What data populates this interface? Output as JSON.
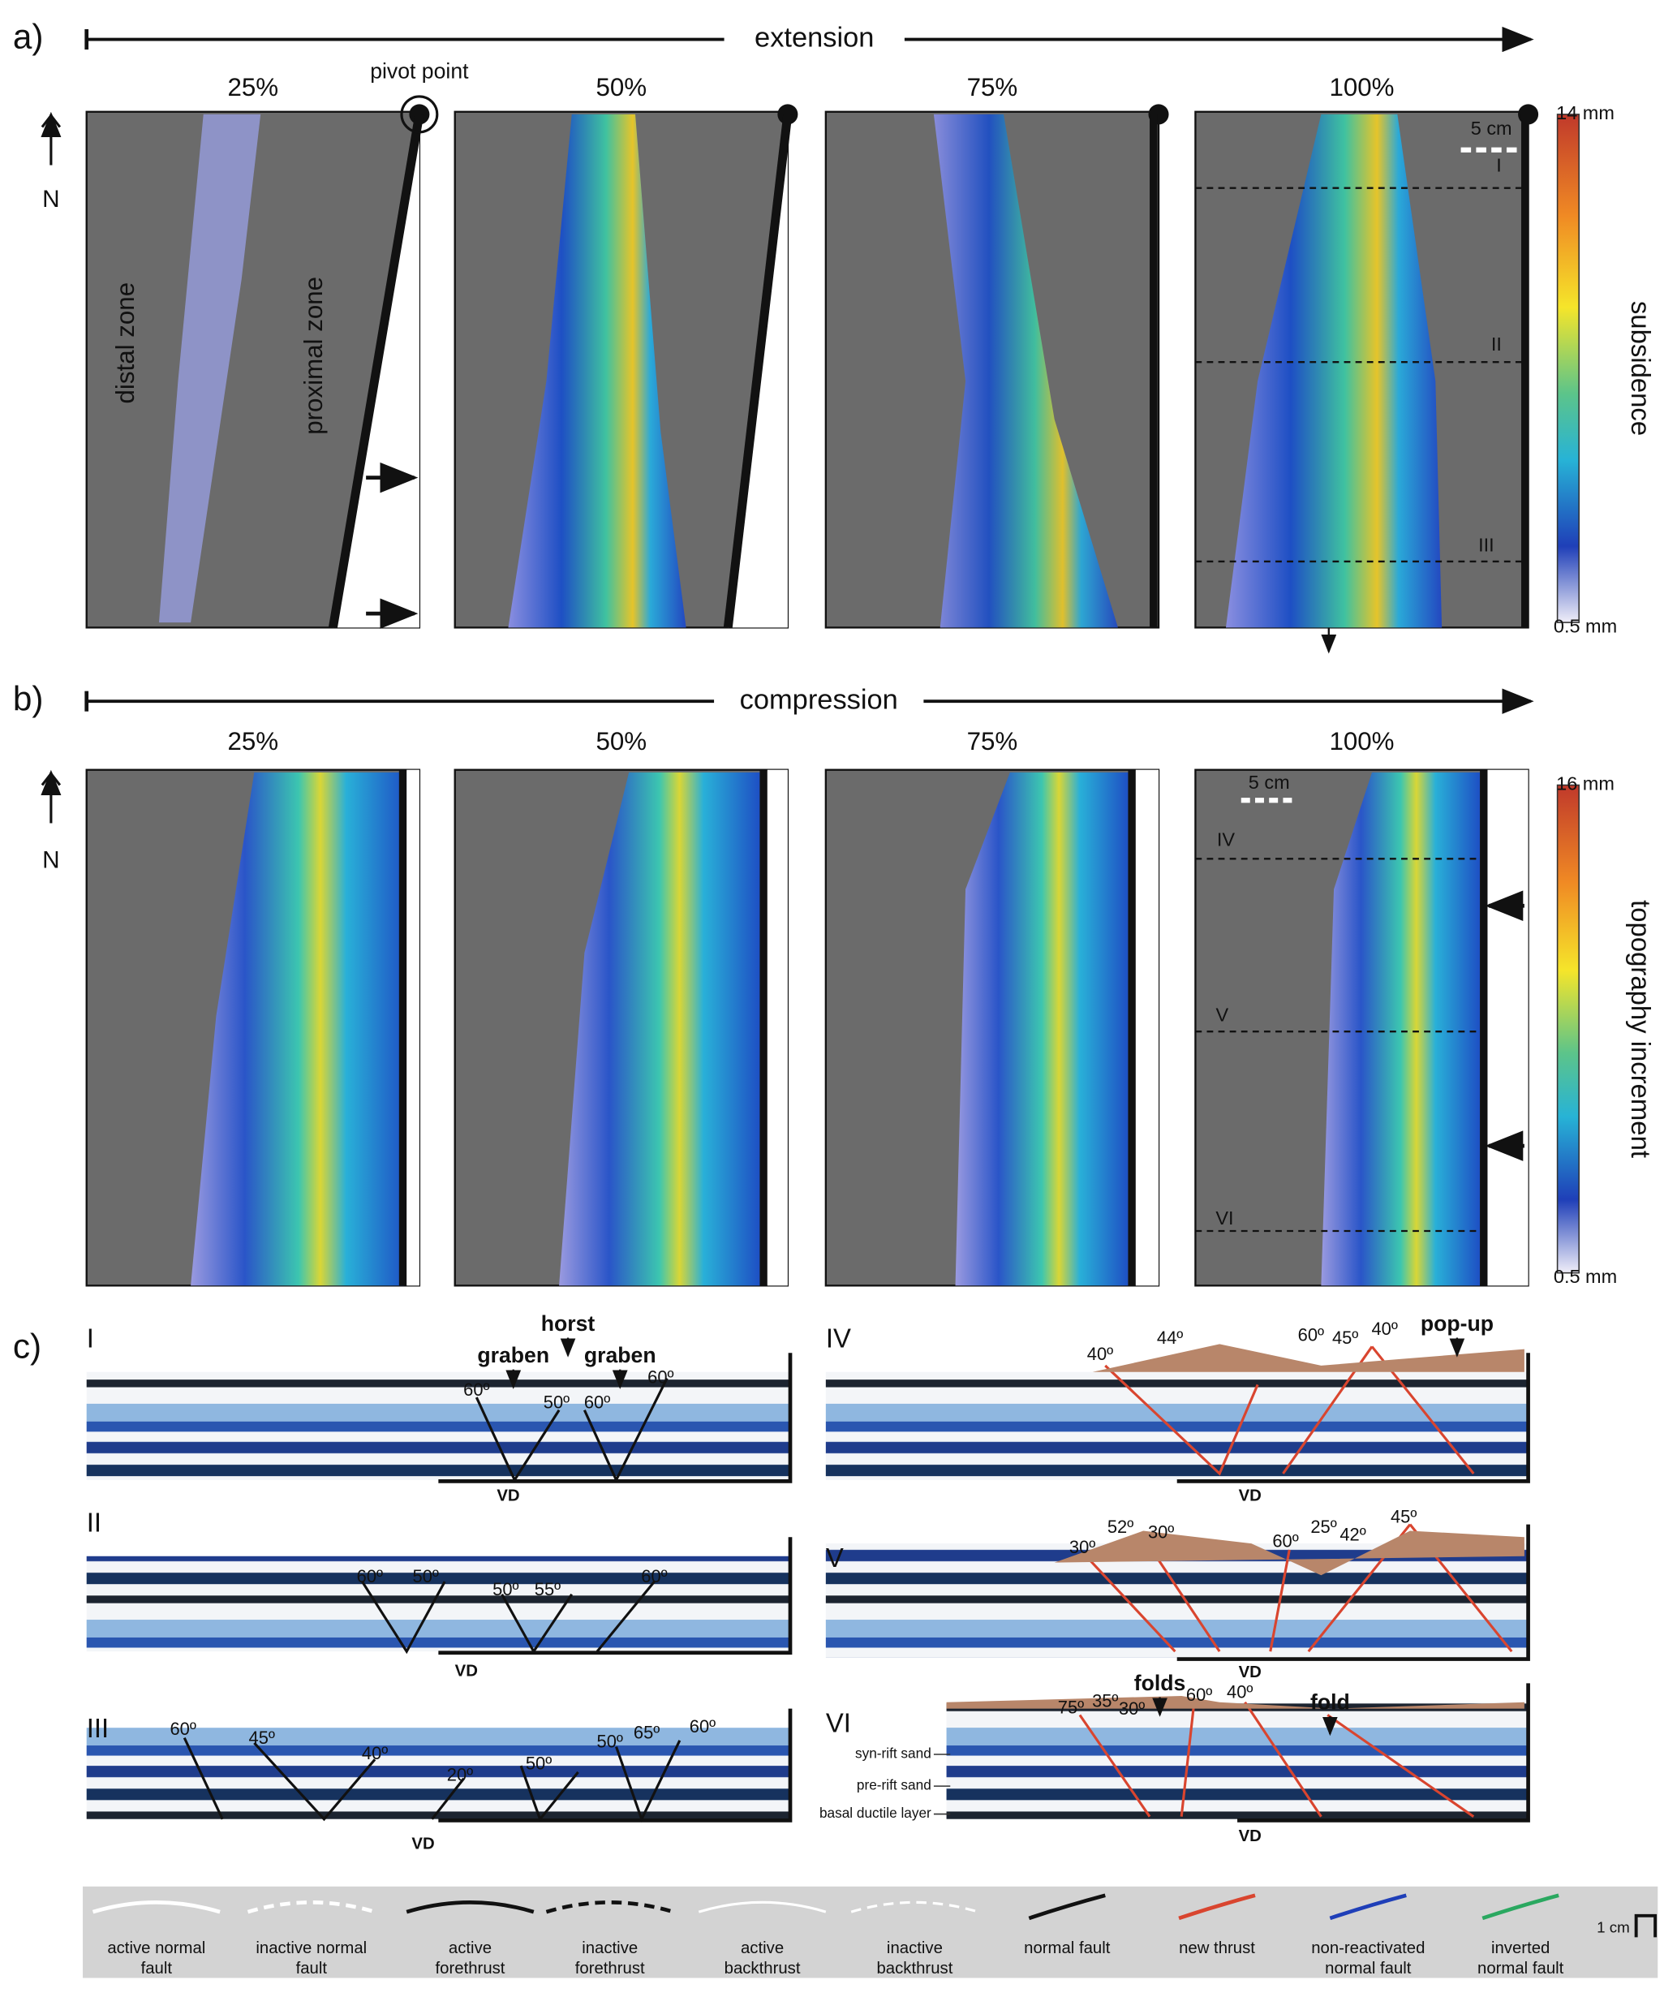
{
  "panel_a": {
    "label": "a)",
    "axis_label": "extension",
    "stages": [
      "25%",
      "50%",
      "75%",
      "100%"
    ],
    "north": "N",
    "pivot": "pivot point",
    "zones": [
      "distal zone",
      "proximal zone"
    ],
    "scale": "5 cm",
    "sections": [
      "I",
      "II",
      "III"
    ],
    "colorbar": {
      "max": "14 mm",
      "min": "0.5 mm",
      "label": "subsidence"
    }
  },
  "panel_b": {
    "label": "b)",
    "axis_label": "compression",
    "stages": [
      "25%",
      "50%",
      "75%",
      "100%"
    ],
    "north": "N",
    "scale": "5 cm",
    "sections": [
      "IV",
      "V",
      "VI"
    ],
    "colorbar": {
      "max": "16 mm",
      "min": "0.5 mm",
      "label": "topography increment"
    }
  },
  "panel_c": {
    "label": "c)",
    "sections": [
      {
        "name": "I",
        "annotations": [
          "horst",
          "graben",
          "graben"
        ],
        "angles": [
          "60º",
          "50º",
          "60º",
          "60º"
        ],
        "vd": "VD"
      },
      {
        "name": "II",
        "annotations": [],
        "angles": [
          "60º",
          "50º",
          "50º",
          "55º",
          "60º"
        ],
        "vd": "VD"
      },
      {
        "name": "III",
        "annotations": [],
        "angles": [
          "60º",
          "45º",
          "40º",
          "20º",
          "50º",
          "50º",
          "65º",
          "60º"
        ],
        "vd": "VD"
      },
      {
        "name": "IV",
        "annotations": [
          "pop-up"
        ],
        "angles": [
          "40º",
          "44º",
          "60º",
          "45º",
          "40º"
        ],
        "vd": "VD"
      },
      {
        "name": "V",
        "annotations": [],
        "angles": [
          "30º",
          "52º",
          "30º",
          "60º",
          "25º",
          "42º",
          "45º"
        ],
        "vd": "VD"
      },
      {
        "name": "VI",
        "annotations": [
          "folds",
          "fold"
        ],
        "angles": [
          "75º",
          "35º",
          "30º",
          "60º",
          "40º"
        ],
        "vd": "VD"
      }
    ],
    "layers": [
      "syn-rift sand",
      "pre-rift sand",
      "basal ductile layer"
    ]
  },
  "legend": {
    "items": [
      [
        "active normal",
        "fault"
      ],
      [
        "inactive normal",
        "fault"
      ],
      [
        "active",
        "forethrust"
      ],
      [
        "inactive",
        "forethrust"
      ],
      [
        "active",
        "backthrust"
      ],
      [
        "inactive",
        "backthrust"
      ],
      [
        "normal fault"
      ],
      [
        "new thrust"
      ],
      [
        "non-reactivated",
        "normal fault"
      ],
      [
        "inverted",
        "normal fault"
      ]
    ],
    "scale": "1 cm"
  }
}
